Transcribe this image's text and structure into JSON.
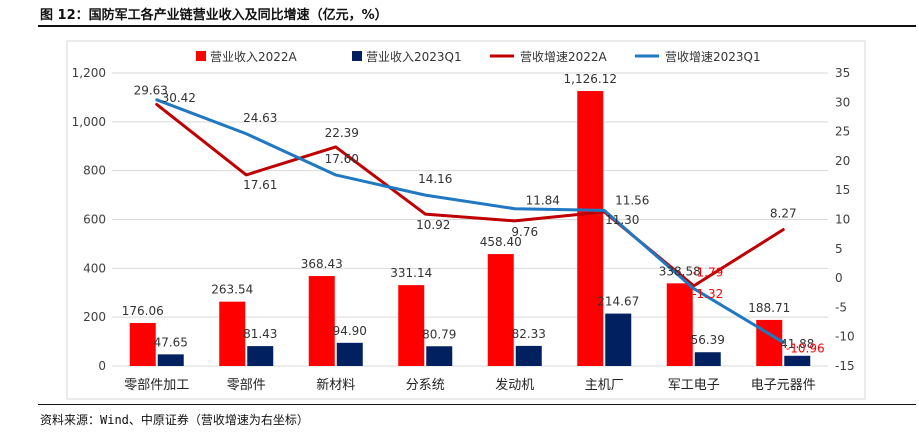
{
  "figure_title": "图 12：国防军工各产业链营业收入及同比增速（亿元，%）",
  "source": "资料来源：Wind、中原证券（营收增速为右坐标）",
  "colors": {
    "bar2022": "#ff0000",
    "bar2023": "#002060",
    "line2022": "#c00000",
    "line2023": "#1f78c1",
    "negative_label": "#ff0000",
    "grid": "#d9d9d9"
  },
  "chart_data": {
    "type": "bar",
    "categories": [
      "零部件加工",
      "零部件",
      "新材料",
      "分系统",
      "发动机",
      "主机厂",
      "军工电子",
      "电子元器件"
    ],
    "legend_position": "top",
    "grid": true,
    "y_left": {
      "lim": [
        0,
        1200
      ],
      "ticks": [
        "0",
        "200",
        "400",
        "600",
        "800",
        "1,000",
        "1,200"
      ]
    },
    "y_right": {
      "lim": [
        -15,
        35
      ],
      "ticks": [
        "-15",
        "-10",
        "-5",
        "0",
        "5",
        "10",
        "15",
        "20",
        "25",
        "30",
        "35"
      ]
    },
    "bars": [
      {
        "name": "营业收入2022A",
        "values": [
          176.06,
          263.54,
          368.43,
          331.14,
          458.4,
          1126.12,
          338.58,
          188.71
        ],
        "labels": [
          "176.06",
          "263.54",
          "368.43",
          "331.14",
          "458.40",
          "1,126.12",
          "338.58",
          "188.71"
        ]
      },
      {
        "name": "营业收入2023Q1",
        "values": [
          47.65,
          81.43,
          94.9,
          80.79,
          82.33,
          214.67,
          56.39,
          41.88
        ],
        "labels": [
          "47.65",
          "81.43",
          "94.90",
          "80.79",
          "82.33",
          "214.67",
          "56.39",
          "41.88"
        ]
      }
    ],
    "lines": [
      {
        "name": "营收增速2022A",
        "axis": "right",
        "values": [
          29.63,
          17.61,
          22.39,
          10.92,
          9.76,
          11.3,
          -1.32,
          8.27
        ],
        "labels": [
          "29.63",
          "17.61",
          "22.39",
          "10.92",
          "9.76",
          "11.30",
          "-1.32",
          "8.27"
        ]
      },
      {
        "name": "营收增速2023Q1",
        "axis": "right",
        "values": [
          30.42,
          24.63,
          17.6,
          14.16,
          11.84,
          11.56,
          -1.79,
          -10.96
        ],
        "labels": [
          "30.42",
          "24.63",
          "17.60",
          "14.16",
          "11.84",
          "11.56",
          "-1.79",
          "-10.96"
        ]
      }
    ]
  }
}
